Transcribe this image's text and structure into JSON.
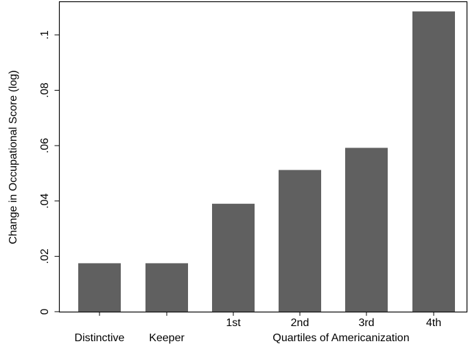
{
  "chart_data": {
    "type": "bar",
    "title": "",
    "xlabel": "",
    "ylabel": "Change in Occupational Score (log)",
    "ylim": [
      0,
      0.112
    ],
    "yticks": [
      0,
      0.02,
      0.04,
      0.06,
      0.08,
      0.1
    ],
    "ytick_labels": [
      "0",
      ".02",
      ".04",
      ".06",
      ".08",
      ".1"
    ],
    "grid": false,
    "legend": "none",
    "bar_color": "#606060",
    "categories": [
      {
        "label": "Distinctive",
        "row": "lower",
        "value": 0.0175
      },
      {
        "label": "Keeper",
        "row": "lower",
        "value": 0.0175
      },
      {
        "label": "1st",
        "row": "upper",
        "value": 0.039
      },
      {
        "label": "2nd",
        "row": "upper",
        "value": 0.0512
      },
      {
        "label": "3rd",
        "row": "upper",
        "value": 0.0592
      },
      {
        "label": "4th",
        "row": "upper",
        "value": 0.1085
      }
    ],
    "group_label": "Quartiles of Americanization"
  }
}
